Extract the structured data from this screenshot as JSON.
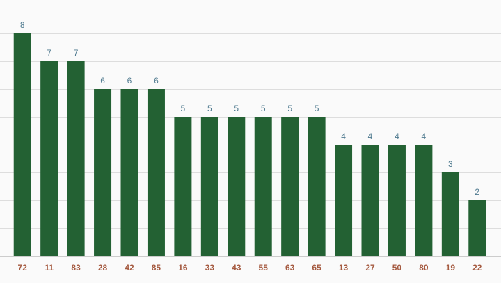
{
  "chart_data": {
    "type": "bar",
    "categories": [
      "72",
      "11",
      "83",
      "28",
      "42",
      "85",
      "16",
      "33",
      "43",
      "55",
      "63",
      "65",
      "13",
      "27",
      "50",
      "80",
      "19",
      "22"
    ],
    "values": [
      8,
      7,
      7,
      6,
      6,
      6,
      5,
      5,
      5,
      5,
      5,
      5,
      4,
      4,
      4,
      4,
      3,
      2
    ],
    "title": "",
    "xlabel": "",
    "ylabel": "",
    "ylim": [
      0,
      9
    ],
    "grid": true,
    "colors": {
      "bar": "#236133",
      "value_label": "#4f7a8f",
      "category_label": "#a55a40",
      "grid": "#dddddd",
      "background": "#fafafa"
    }
  }
}
